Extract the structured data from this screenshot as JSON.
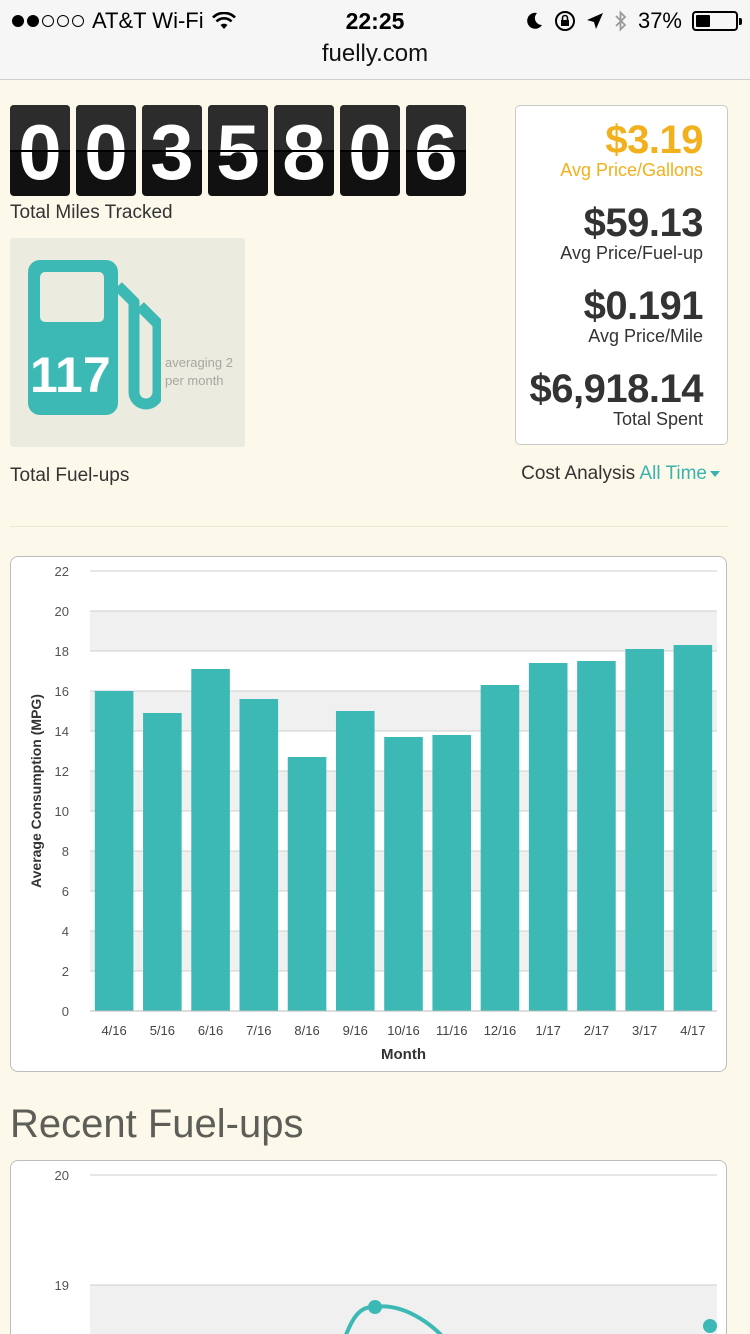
{
  "status_bar": {
    "carrier": "AT&T Wi-Fi",
    "signal_bars": 2,
    "time": "22:25",
    "battery_percent": "37%",
    "battery_level": 0.37,
    "icons": [
      "wifi-icon",
      "moon-icon",
      "rotation-lock-icon",
      "location-arrow-icon",
      "bluetooth-icon",
      "battery-icon"
    ]
  },
  "browser": {
    "url": "fuelly.com"
  },
  "odometer": {
    "digits": [
      "0",
      "0",
      "3",
      "5",
      "8",
      "0",
      "6"
    ],
    "label": "Total Miles Tracked"
  },
  "fuelups": {
    "icon": "fuel-pump-icon",
    "count": "117",
    "averaging": "averaging 2 per month",
    "label": "Total Fuel-ups"
  },
  "stats": {
    "avg_price_gallon": {
      "value": "$3.19",
      "label": "Avg Price/Gallons"
    },
    "avg_price_fuelup": {
      "value": "$59.13",
      "label": "Avg Price/Fuel-up"
    },
    "avg_price_mile": {
      "value": "$0.191",
      "label": "Avg Price/Mile"
    },
    "total_spent": {
      "value": "$6,918.14",
      "label": "Total Spent"
    }
  },
  "cost_analysis": {
    "label": "Cost Analysis",
    "period": "All Time"
  },
  "colors": {
    "accent": "#3cb9b5",
    "gold": "#f2b01c",
    "background": "#fcf9ea"
  },
  "chart_data": [
    {
      "type": "bar",
      "title": "",
      "xlabel": "Month",
      "ylabel": "Average Consumption (MPG)",
      "categories": [
        "4/16",
        "5/16",
        "6/16",
        "7/16",
        "8/16",
        "9/16",
        "10/16",
        "11/16",
        "12/16",
        "1/17",
        "2/17",
        "3/17",
        "4/17"
      ],
      "values": [
        16.0,
        14.9,
        17.1,
        15.6,
        12.7,
        15.0,
        13.7,
        13.8,
        16.3,
        17.4,
        17.5,
        18.1,
        18.3
      ],
      "ylim": [
        0,
        22
      ],
      "yticks": [
        0,
        2,
        4,
        6,
        8,
        10,
        12,
        14,
        16,
        18,
        20,
        22
      ],
      "grid": true,
      "legend": "none"
    },
    {
      "type": "line",
      "title": "Recent Fuel-ups",
      "yticks_visible": [
        19,
        20
      ],
      "visible_points": [
        18.8,
        18.9
      ],
      "grid": true
    }
  ]
}
